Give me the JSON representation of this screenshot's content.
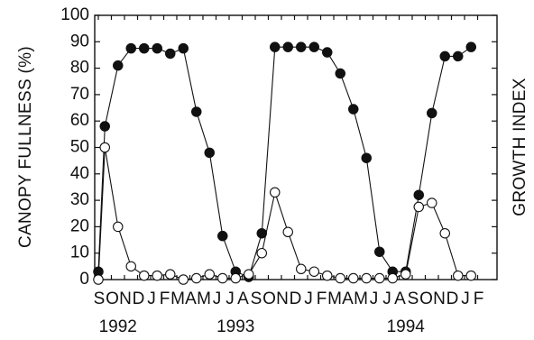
{
  "chart_data": {
    "type": "line",
    "ylabel_left": "CANOPY FULLNESS (%)",
    "ylabel_right": "GROWTH INDEX",
    "ylim": [
      0,
      100
    ],
    "yticks": [
      0,
      10,
      20,
      30,
      40,
      50,
      60,
      70,
      80,
      90,
      100
    ],
    "grid": false,
    "months": [
      "S",
      "O",
      "N",
      "D",
      "J",
      "F",
      "M",
      "A",
      "M",
      "J",
      "J",
      "A",
      "S",
      "O",
      "N",
      "D",
      "J",
      "F",
      "M",
      "A",
      "M",
      "J",
      "J",
      "A",
      "S",
      "O",
      "N",
      "D",
      "J",
      "F"
    ],
    "years": [
      {
        "label": "1992",
        "month_index": 1.5
      },
      {
        "label": "1993",
        "month_index": 10.5
      },
      {
        "label": "1994",
        "month_index": 23.5
      }
    ],
    "series": [
      {
        "marker": "filled-circle",
        "points": [
          [
            0,
            3
          ],
          [
            0.5,
            58
          ],
          [
            1.5,
            81
          ],
          [
            2.5,
            87.5
          ],
          [
            3.5,
            87.5
          ],
          [
            4.5,
            87.5
          ],
          [
            5.5,
            85.5
          ],
          [
            6.5,
            87.5
          ],
          [
            7.5,
            63.5
          ],
          [
            8.5,
            48
          ],
          [
            9.5,
            16.5
          ],
          [
            10.5,
            3
          ],
          [
            11.5,
            1
          ],
          [
            12.5,
            17.5
          ],
          [
            13.5,
            88
          ],
          [
            14.5,
            88
          ],
          [
            15.5,
            88
          ],
          [
            16.5,
            88
          ],
          [
            17.5,
            86
          ],
          [
            18.5,
            78
          ],
          [
            19.5,
            64.5
          ],
          [
            20.5,
            46
          ],
          [
            21.5,
            10.5
          ],
          [
            22.5,
            3
          ],
          [
            23.5,
            3
          ],
          [
            24.5,
            32
          ],
          [
            25.5,
            63
          ],
          [
            26.5,
            84.5
          ],
          [
            27.5,
            84.5
          ],
          [
            28.5,
            88
          ]
        ]
      },
      {
        "marker": "open-circle",
        "points": [
          [
            0,
            0
          ],
          [
            0.5,
            50
          ],
          [
            1.5,
            20
          ],
          [
            2.5,
            5
          ],
          [
            3.5,
            1.5
          ],
          [
            4.5,
            1.5
          ],
          [
            5.5,
            2
          ],
          [
            6.5,
            0
          ],
          [
            7.5,
            0.5
          ],
          [
            8.5,
            2
          ],
          [
            9.5,
            0.5
          ],
          [
            10.5,
            0.5
          ],
          [
            11.5,
            2
          ],
          [
            12.5,
            10
          ],
          [
            13.5,
            33
          ],
          [
            14.5,
            18
          ],
          [
            15.5,
            4
          ],
          [
            16.5,
            3
          ],
          [
            17.5,
            1.5
          ],
          [
            18.5,
            0.5
          ],
          [
            19.5,
            0.5
          ],
          [
            20.5,
            0.5
          ],
          [
            21.5,
            0.5
          ],
          [
            22.5,
            0.5
          ],
          [
            23.5,
            2
          ],
          [
            24.5,
            27.5
          ],
          [
            25.5,
            29
          ],
          [
            26.5,
            17.5
          ],
          [
            27.5,
            1.5
          ],
          [
            28.5,
            1.5
          ]
        ]
      }
    ]
  }
}
